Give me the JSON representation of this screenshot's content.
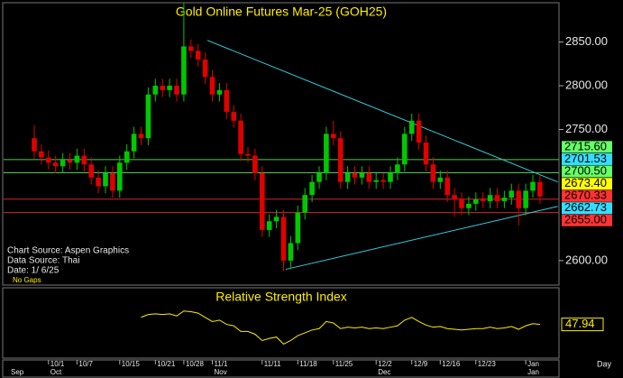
{
  "chart_data": {
    "type": "candlestick",
    "title": "Gold Online Futures Mar-25 (GOH25)",
    "categories": [
      null,
      null,
      "10/1",
      null,
      null,
      null,
      "10/7",
      null,
      null,
      null,
      null,
      null,
      "10/15",
      null,
      null,
      null,
      null,
      "10/21",
      null,
      null,
      null,
      "10/28",
      null,
      null,
      null,
      "11/1",
      null,
      null,
      null,
      null,
      null,
      null,
      "11/11",
      null,
      null,
      null,
      null,
      "11/18",
      null,
      null,
      null,
      null,
      "11/25",
      null,
      null,
      null,
      null,
      null,
      "12/2",
      null,
      null,
      null,
      null,
      "12/9",
      null,
      null,
      null,
      "12/16",
      null,
      null,
      null,
      null,
      "12/23",
      null,
      null,
      null,
      null,
      null,
      null,
      "Jan",
      null,
      null
    ],
    "months": [
      "Sep",
      null,
      "Oct",
      null,
      null,
      null,
      null,
      null,
      null,
      null,
      null,
      null,
      null,
      null,
      null,
      null,
      null,
      null,
      null,
      null,
      null,
      null,
      null,
      null,
      null,
      "Nov",
      null,
      null,
      null,
      null,
      null,
      null,
      null,
      null,
      null,
      null,
      null,
      null,
      null,
      null,
      null,
      null,
      null,
      null,
      null,
      null,
      null,
      null,
      "Dec",
      null,
      null,
      null,
      null,
      null,
      null,
      null,
      null,
      null,
      null,
      null,
      null,
      null,
      null,
      null,
      null,
      null,
      null,
      null,
      null,
      "Jan",
      null,
      null
    ],
    "x_unit": "Day",
    "open": [
      2740,
      2725,
      2718,
      2712,
      2708,
      2715,
      2712,
      2720,
      2710,
      2695,
      2685,
      2700,
      2680,
      2712,
      2725,
      2745,
      2740,
      2790,
      2800,
      2795,
      2800,
      2790,
      2845,
      2840,
      2830,
      2810,
      2790,
      2795,
      2770,
      2760,
      2722,
      2720,
      2700,
      2635,
      2645,
      2650,
      2600,
      2620,
      2655,
      2675,
      2690,
      2700,
      2745,
      2740,
      2690,
      2700,
      2695,
      2700,
      2690,
      2692,
      2690,
      2700,
      2710,
      2745,
      2760,
      2735,
      2710,
      2690,
      2695,
      2675,
      2670,
      2660,
      2665,
      2670,
      2668,
      2675,
      2668,
      2672,
      2680,
      2660,
      2680,
      2690
    ],
    "high": [
      2755,
      2733,
      2726,
      2720,
      2723,
      2723,
      2728,
      2728,
      2718,
      2703,
      2708,
      2708,
      2720,
      2733,
      2753,
      2753,
      2798,
      2808,
      2808,
      2808,
      2808,
      2895,
      2853,
      2848,
      2838,
      2818,
      2803,
      2803,
      2778,
      2768,
      2730,
      2728,
      2708,
      2653,
      2658,
      2658,
      2628,
      2663,
      2683,
      2698,
      2708,
      2753,
      2760,
      2748,
      2708,
      2708,
      2708,
      2708,
      2700,
      2700,
      2708,
      2718,
      2753,
      2768,
      2768,
      2743,
      2718,
      2703,
      2703,
      2683,
      2678,
      2673,
      2678,
      2678,
      2683,
      2683,
      2680,
      2688,
      2688,
      2688,
      2698,
      2698
    ],
    "low": [
      2717,
      2710,
      2704,
      2700,
      2700,
      2704,
      2704,
      2702,
      2687,
      2677,
      2677,
      2672,
      2672,
      2704,
      2717,
      2732,
      2732,
      2782,
      2787,
      2787,
      2782,
      2782,
      2832,
      2822,
      2802,
      2782,
      2782,
      2762,
      2752,
      2714,
      2712,
      2692,
      2627,
      2627,
      2637,
      2588,
      2592,
      2612,
      2647,
      2667,
      2682,
      2692,
      2732,
      2682,
      2682,
      2687,
      2687,
      2682,
      2682,
      2682,
      2682,
      2692,
      2702,
      2737,
      2727,
      2702,
      2682,
      2682,
      2667,
      2650,
      2652,
      2652,
      2657,
      2660,
      2660,
      2660,
      2660,
      2664,
      2640,
      2652,
      2672,
      2665
    ],
    "close": [
      2725,
      2718,
      2712,
      2708,
      2715,
      2712,
      2720,
      2710,
      2695,
      2685,
      2700,
      2680,
      2712,
      2725,
      2745,
      2740,
      2790,
      2800,
      2795,
      2800,
      2790,
      2845,
      2840,
      2830,
      2810,
      2790,
      2795,
      2770,
      2760,
      2722,
      2720,
      2700,
      2635,
      2645,
      2650,
      2600,
      2620,
      2655,
      2675,
      2690,
      2700,
      2745,
      2740,
      2690,
      2700,
      2695,
      2700,
      2690,
      2692,
      2690,
      2700,
      2710,
      2745,
      2760,
      2735,
      2710,
      2690,
      2695,
      2675,
      2670,
      2660,
      2665,
      2670,
      2668,
      2675,
      2668,
      2672,
      2680,
      2660,
      2680,
      2690,
      2673.4
    ],
    "up_color": "#00c800",
    "down_color": "#e00000",
    "ylim": [
      2572,
      2895
    ],
    "yticks": [
      {
        "value": 2850,
        "label": "2850.00"
      },
      {
        "value": 2800,
        "label": "2800.00"
      },
      {
        "value": 2750,
        "label": "2750.00"
      },
      {
        "value": 2600,
        "label": "2600.00"
      }
    ],
    "levels": [
      {
        "value": 2715.6,
        "label": "2715.60",
        "color": "#66ff66",
        "line": true
      },
      {
        "value": 2701.53,
        "label": "2701.53",
        "color": "#33ddff",
        "line": false
      },
      {
        "value": 2700.5,
        "label": "2700.50",
        "color": "#66ff66",
        "line": true
      },
      {
        "value": 2673.4,
        "label": "2673.40",
        "color": "#ffff00",
        "line": false
      },
      {
        "value": 2670.33,
        "label": "2670.33",
        "color": "#ff3333",
        "line": true
      },
      {
        "value": 2662.73,
        "label": "2662.73",
        "color": "#33ddff",
        "line": false
      },
      {
        "value": 2655,
        "label": "2655.00",
        "color": "#ff3333",
        "line": true
      }
    ],
    "level_line_colors": [
      "#33dd33",
      "#33dd33",
      "#dd2222",
      "#bbbbbb"
    ],
    "trendlines": [
      {
        "x": [
          24.3,
          73.5
        ],
        "y": [
          2852,
          2690
        ],
        "color": "#33ccdd"
      },
      {
        "x": [
          35.3,
          73.5
        ],
        "y": [
          2590,
          2662
        ],
        "color": "#33ccdd"
      }
    ],
    "annotations": [
      "Chart Source: Aspen Graphics",
      "Data Source: Thai",
      "Date:  1/ 6/25",
      "No Gaps"
    ],
    "rsi": {
      "title": "Relative Strength Index",
      "color": "#ffee00",
      "ylim": [
        0,
        100
      ],
      "values": [
        null,
        null,
        null,
        null,
        null,
        null,
        null,
        null,
        null,
        null,
        null,
        null,
        null,
        null,
        null,
        58,
        62,
        63,
        62,
        63,
        60,
        67,
        66,
        64,
        58,
        52,
        54,
        48,
        46,
        38,
        38,
        34,
        25,
        28,
        30,
        20,
        25,
        32,
        36,
        40,
        42,
        52,
        50,
        42,
        44,
        43,
        44,
        42,
        43,
        42,
        44,
        46,
        54,
        58,
        52,
        47,
        44,
        45,
        42,
        41,
        40,
        41,
        42,
        42,
        44,
        42,
        43,
        45,
        41,
        46,
        49,
        47.94
      ]
    }
  }
}
